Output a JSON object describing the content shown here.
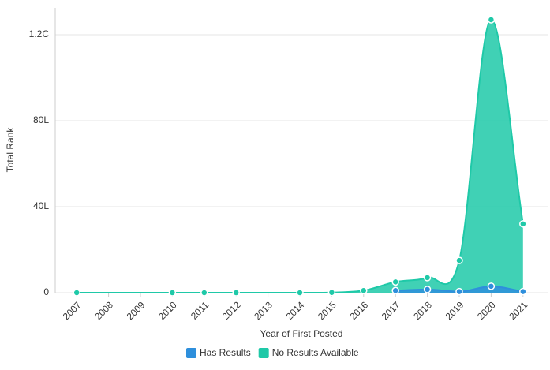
{
  "chart_data": {
    "type": "area",
    "y_label": "Total Rank",
    "x_label": "Year of First Posted",
    "xlim": [
      2006.5,
      2021.5
    ],
    "xticks": [
      2007,
      2008,
      2009,
      2010,
      2011,
      2012,
      2013,
      2014,
      2015,
      2016,
      2017,
      2018,
      2019,
      2020,
      2021
    ],
    "ylim": [
      0,
      13250000
    ],
    "yticks": [
      0,
      {
        "value": 4000000,
        "label": "40L"
      },
      {
        "value": 8000000,
        "label": "80L"
      },
      {
        "value": 12000000,
        "label": "1.2C"
      }
    ],
    "grid": true,
    "legend": "bottom",
    "series": [
      {
        "name": "Has Results",
        "color": "#2e8fdc",
        "x": [
          2017,
          2018,
          2019,
          2020,
          2021
        ],
        "values": [
          100000,
          150000,
          50000,
          300000,
          50000
        ]
      },
      {
        "name": "No Results Available",
        "color": "#1fc9a8",
        "x": [
          2007,
          2010,
          2011,
          2012,
          2014,
          2015,
          2016,
          2017,
          2018,
          2019,
          2020,
          2021
        ],
        "values": [
          0,
          0,
          0,
          0,
          0,
          10000,
          100000,
          500000,
          700000,
          1500000,
          12700000,
          3200000
        ]
      }
    ]
  }
}
